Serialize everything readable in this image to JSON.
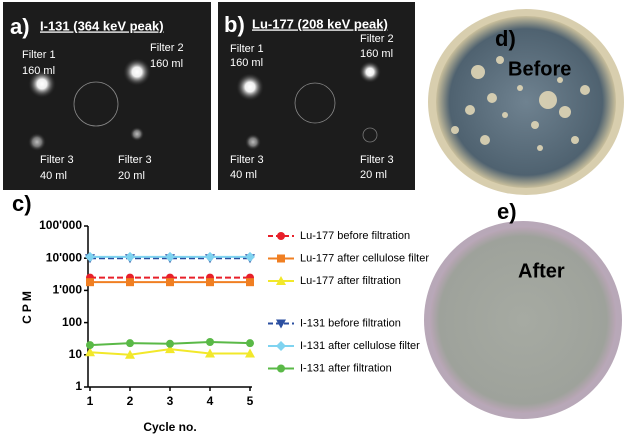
{
  "panels": {
    "a": {
      "label": "a)",
      "title": "I-131 (364 keV peak)",
      "filters": [
        {
          "name": "Filter 1",
          "volume": "160 ml"
        },
        {
          "name": "Filter 2",
          "volume": "160 ml"
        },
        {
          "name": "Filter 3",
          "volume": "40 ml"
        },
        {
          "name": "Filter 3",
          "volume": "20 ml"
        }
      ]
    },
    "b": {
      "label": "b)",
      "title": "Lu-177 (208 keV peak)",
      "filters": [
        {
          "name": "Filter 1",
          "volume": "160 ml"
        },
        {
          "name": "Filter 2",
          "volume": "160 ml"
        },
        {
          "name": "Filter 3",
          "volume": "40 ml"
        },
        {
          "name": "Filter 3",
          "volume": "20 ml"
        }
      ]
    },
    "c": {
      "label": "c)"
    },
    "d": {
      "label": "d)",
      "caption": "Before"
    },
    "e": {
      "label": "e)",
      "caption": "After"
    }
  },
  "chart_data": {
    "type": "line",
    "y_label": "CPM",
    "x_label": "Cycle no.",
    "log_y": true,
    "x": [
      1,
      2,
      3,
      4,
      5
    ],
    "xlim": [
      0.95,
      5.05
    ],
    "xticks": [
      1,
      2,
      3,
      4,
      5
    ],
    "ylim": [
      1,
      100000
    ],
    "yticks": [
      1,
      10,
      100,
      {
        "value": 1000,
        "label": "1'000"
      },
      {
        "value": 10000,
        "label": "10'000"
      },
      {
        "value": 100000,
        "label": "100'000"
      }
    ],
    "series": [
      {
        "name": "Lu-177 before filtration",
        "color": "#e8202a",
        "marker": "circle",
        "dashed": true,
        "values": [
          2500,
          2500,
          2500,
          2500,
          2500
        ]
      },
      {
        "name": "Lu-177 after cellulose filter",
        "color": "#f07f22",
        "marker": "square",
        "dashed": false,
        "values": [
          1800,
          1800,
          1800,
          1800,
          1800
        ]
      },
      {
        "name": "Lu-177 after filtration",
        "color": "#f2e82a",
        "marker": "triangle",
        "dashed": false,
        "values": [
          12,
          10,
          15,
          11,
          11
        ]
      },
      {
        "name": "I-131 before filtration",
        "color": "#2b4fa0",
        "marker": "triangle-down",
        "dashed": true,
        "values": [
          10000,
          10000,
          10000,
          10000,
          10000
        ]
      },
      {
        "name": "I-131 after cellulose filter",
        "color": "#7fd3f0",
        "marker": "diamond",
        "dashed": false,
        "values": [
          11000,
          11000,
          11000,
          11000,
          11000
        ]
      },
      {
        "name": "I-131 after filtration",
        "color": "#5ab947",
        "marker": "circle",
        "dashed": false,
        "values": [
          20,
          23,
          22,
          25,
          23
        ]
      }
    ]
  }
}
